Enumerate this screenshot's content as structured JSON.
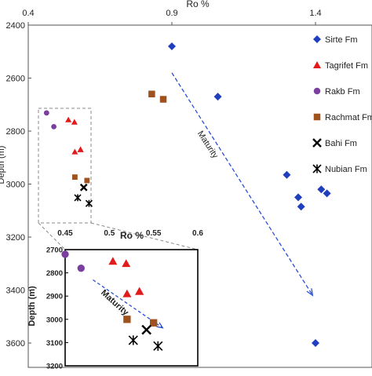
{
  "chart_data": [
    {
      "type": "scatter",
      "title": "",
      "xlabel": "Ro %",
      "ylabel": "Depth (m)",
      "x_axis_position": "top",
      "y_inverted": true,
      "xlim": [
        0.4,
        1.4
      ],
      "ylim": [
        2400,
        3650
      ],
      "x_ticks": [
        "0.4",
        "0.9",
        "1.4"
      ],
      "y_ticks": [
        "2400",
        "2600",
        "2800",
        "3000",
        "3200",
        "3400",
        "3600"
      ],
      "y_tick_values": [
        2400,
        2600,
        2800,
        3000,
        3200,
        3400,
        3600
      ],
      "grid": false,
      "legend_position": "right",
      "annotation": "Maturity",
      "annotation_arrow": {
        "from": [
          0.9,
          2580
        ],
        "to": [
          1.39,
          3420
        ]
      },
      "series": [
        {
          "name": "Sirte Fm",
          "marker": "diamond",
          "color": "#1f3fbf",
          "points": [
            [
              0.9,
              2480
            ],
            [
              1.06,
              2670
            ],
            [
              1.3,
              2965
            ],
            [
              1.34,
              3050
            ],
            [
              1.35,
              3085
            ],
            [
              1.42,
              3020
            ],
            [
              1.44,
              3035
            ],
            [
              1.4,
              3600
            ]
          ]
        },
        {
          "name": "Tagrifet Fm",
          "marker": "triangle",
          "color": "#e31a1c",
          "points": []
        },
        {
          "name": "Rakb Fm",
          "marker": "circle",
          "color": "#7b3fa0",
          "points": []
        },
        {
          "name": "Rachmat Fm",
          "marker": "square",
          "color": "#a0521e",
          "points": [
            [
              0.83,
              2660
            ],
            [
              0.87,
              2680
            ]
          ]
        },
        {
          "name": "Bahi Fm",
          "marker": "x",
          "color": "#000000",
          "points": []
        },
        {
          "name": "Nubian Fm",
          "marker": "star",
          "color": "#000000",
          "points": []
        }
      ]
    },
    {
      "type": "scatter",
      "title": "",
      "xlabel": "Ro %",
      "ylabel": "Depth (m)",
      "x_axis_position": "top",
      "y_inverted": true,
      "xlim": [
        0.4,
        0.6
      ],
      "ylim": [
        2700,
        3200
      ],
      "x_ticks": [
        "0.45",
        "0.5",
        "0.55",
        "0.6"
      ],
      "x_tick_values": [
        0.45,
        0.5,
        0.55,
        0.6
      ],
      "y_ticks": [
        "2700",
        "2800",
        "2900",
        "3000",
        "3100",
        "3200"
      ],
      "y_tick_values": [
        2700,
        2800,
        2900,
        3000,
        3100,
        3200
      ],
      "grid": false,
      "annotation": "Maturity",
      "annotation_arrow": {
        "from": [
          0.485,
          2820
        ],
        "to": [
          0.555,
          3030
        ]
      },
      "series": [
        {
          "name": "Tagrifet Fm",
          "marker": "triangle",
          "color": "#e31a1c",
          "points": [
            [
              0.504,
              2750
            ],
            [
              0.519,
              2760
            ],
            [
              0.52,
              2890
            ],
            [
              0.534,
              2880
            ],
            [
              0.534,
              2880
            ]
          ]
        },
        {
          "name": "Rakb Fm",
          "marker": "circle",
          "color": "#7b3fa0",
          "points": [
            [
              0.45,
              2720
            ],
            [
              0.468,
              2780
            ]
          ]
        },
        {
          "name": "Rachmat Fm",
          "marker": "square",
          "color": "#a0521e",
          "points": [
            [
              0.52,
              3000
            ],
            [
              0.55,
              3015
            ]
          ]
        },
        {
          "name": "Bahi Fm",
          "marker": "x",
          "color": "#000000",
          "points": [
            [
              0.542,
              3045
            ]
          ]
        },
        {
          "name": "Nubian Fm",
          "marker": "star",
          "color": "#000000",
          "points": [
            [
              0.527,
              3090
            ],
            [
              0.555,
              3115
            ]
          ]
        }
      ]
    }
  ]
}
